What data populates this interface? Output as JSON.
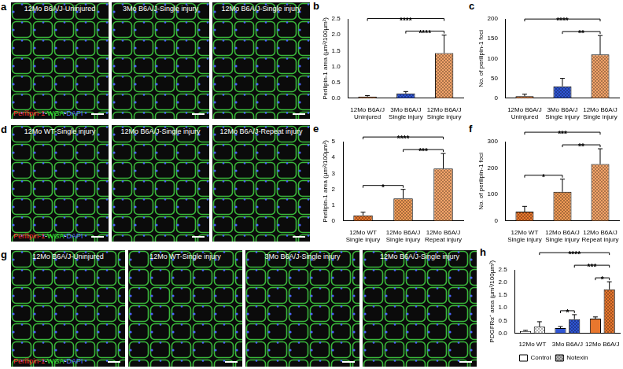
{
  "image_panels": [
    {
      "panel": "a",
      "images": [
        "12Mo B6A/J-Uninjured",
        "3Mo B6A/J-Single injury",
        "12Mo B6A/J-Single injury"
      ],
      "stain": [
        {
          "text": "Perilipin-1",
          "color": "#ff2b2b"
        },
        {
          "text": "-",
          "color": "#ffffff"
        },
        {
          "text": "WGA",
          "color": "#33ee33"
        },
        {
          "text": "-",
          "color": "#ffffff"
        },
        {
          "text": "DAPI",
          "color": "#5a74ff"
        }
      ]
    },
    {
      "panel": "d",
      "images": [
        "12Mo WT-Single injury",
        "12Mo B6A/J-Single injury",
        "12Mo B6A/J-Repeat injury"
      ],
      "stain": [
        {
          "text": "Perilipin-1",
          "color": "#ff2b2b"
        },
        {
          "text": "-",
          "color": "#ffffff"
        },
        {
          "text": "WGA",
          "color": "#33ee33"
        },
        {
          "text": "-",
          "color": "#ffffff"
        },
        {
          "text": "DAPI",
          "color": "#5a74ff"
        }
      ]
    },
    {
      "panel": "g",
      "images": [
        "12Mo B6A/J-Uninjured",
        "12Mo WT-Single injury",
        "3Mo B6A/J-Single injury",
        "12Mo B6A/J-Single injury"
      ],
      "stain": [
        {
          "text": "Perilipin-1",
          "color": "#ff2b2b"
        },
        {
          "text": "-",
          "color": "#ffffff"
        },
        {
          "text": "WGA",
          "color": "#33ee33"
        },
        {
          "text": "-",
          "color": "#ffffff"
        },
        {
          "text": "DAPI",
          "color": "#5a74ff"
        }
      ]
    }
  ],
  "chart_data": [
    {
      "panel": "b",
      "type": "bar",
      "grid": false,
      "ylabel": "Perilipin-1 area (µm²/100µm²)",
      "categories": [
        [
          "12Mo B6A/J",
          "Uninjured"
        ],
        [
          "3Mo B6A/J",
          "Single injury"
        ],
        [
          "12Mo B6A/J",
          "Single injury"
        ]
      ],
      "series": [
        {
          "colors": [
            "#e8772e",
            "#2f55d4",
            "#f3a46a"
          ],
          "values": [
            0.05,
            0.15,
            1.42
          ],
          "errors": [
            0.03,
            0.06,
            0.57
          ]
        }
      ],
      "ylim": [
        0,
        2.5
      ],
      "yticks": [
        {
          "value": 0,
          "label": "0.0"
        },
        0.5,
        {
          "value": 1,
          "label": "1.0"
        },
        1.5,
        {
          "value": 2,
          "label": "2.0"
        },
        2.5
      ],
      "annotations": [
        {
          "from": [
            0,
            1
          ],
          "to": [
            0,
            2
          ],
          "text": "****"
        },
        {
          "from": [
            0,
            0
          ],
          "to": [
            0,
            2
          ],
          "text": "****"
        }
      ]
    },
    {
      "panel": "c",
      "type": "bar",
      "grid": false,
      "ylabel": "No. of perilipin-1 foci",
      "categories": [
        [
          "12Mo B6A/J",
          "Uninjured"
        ],
        [
          "3Mo B6A/J",
          "Single injury"
        ],
        [
          "12Mo B6A/J",
          "Single injury"
        ]
      ],
      "series": [
        {
          "colors": [
            "#e8772e",
            "#2f55d4",
            "#f3a46a"
          ],
          "values": [
            5,
            30,
            110
          ],
          "errors": [
            5,
            20,
            48
          ]
        }
      ],
      "ylim": [
        0,
        200
      ],
      "yticks": [
        0,
        50,
        100,
        150,
        200
      ],
      "annotations": [
        {
          "from": [
            0,
            1
          ],
          "to": [
            0,
            2
          ],
          "text": "**"
        },
        {
          "from": [
            0,
            0
          ],
          "to": [
            0,
            2
          ],
          "text": "****"
        }
      ]
    },
    {
      "panel": "e",
      "type": "bar",
      "grid": false,
      "ylabel": "Perilipin-1 area (µm²/100µm²)",
      "categories": [
        [
          "12Mo WT",
          "Single injury"
        ],
        [
          "12Mo B6A/J",
          "Single injury"
        ],
        [
          "12Mo B6A/J",
          "Repeat injury"
        ]
      ],
      "series": [
        {
          "colors": [
            "#e8772e",
            "#f09a55",
            "#f5a56a"
          ],
          "values": [
            0.35,
            1.42,
            3.3
          ],
          "errors": [
            0.2,
            0.57,
            0.95
          ]
        }
      ],
      "ylim": [
        0,
        5
      ],
      "yticks": [
        0,
        1,
        2,
        3,
        4,
        5
      ],
      "annotations": [
        {
          "from": [
            0,
            0
          ],
          "to": [
            0,
            1
          ],
          "text": "*"
        },
        {
          "from": [
            0,
            1
          ],
          "to": [
            0,
            2
          ],
          "text": "***"
        },
        {
          "from": [
            0,
            0
          ],
          "to": [
            0,
            2
          ],
          "text": "****"
        }
      ]
    },
    {
      "panel": "f",
      "type": "bar",
      "grid": false,
      "ylabel": "No. of perilipin-1 foci",
      "categories": [
        [
          "12Mo WT",
          "Single injury"
        ],
        [
          "12Mo B6A/J",
          "Single injury"
        ],
        [
          "12Mo B6A/J",
          "Repeat injury"
        ]
      ],
      "series": [
        {
          "colors": [
            "#e8772e",
            "#f09a55",
            "#f5a56a"
          ],
          "values": [
            35,
            110,
            215
          ],
          "errors": [
            20,
            48,
            58
          ]
        }
      ],
      "ylim": [
        0,
        300
      ],
      "yticks": [
        0,
        100,
        200,
        300
      ],
      "annotations": [
        {
          "from": [
            0,
            0
          ],
          "to": [
            0,
            1
          ],
          "text": "*"
        },
        {
          "from": [
            0,
            1
          ],
          "to": [
            0,
            2
          ],
          "text": "**"
        },
        {
          "from": [
            0,
            0
          ],
          "to": [
            0,
            2
          ],
          "text": "***"
        }
      ]
    },
    {
      "panel": "h",
      "type": "bar",
      "grid": false,
      "legend": "bottom",
      "ylabel": "PDGFRα⁺ area (µm²/100µm²)",
      "categories": [
        "12Mo WT",
        "3Mo B6A/J",
        "12Mo B6A/J"
      ],
      "series": [
        {
          "name": "Control",
          "color": "#ffffff",
          "colors": [
            "#ffffff",
            "#2f55d4",
            "#e8772e"
          ],
          "values": [
            0.08,
            0.2,
            0.57
          ],
          "errors": [
            0.03,
            0.06,
            0.07
          ]
        },
        {
          "name": "Notexin",
          "color": "#bbbbbb",
          "colors": [
            "#ffffff",
            "#2f55d4",
            "#e8772e"
          ],
          "values": [
            0.25,
            0.55,
            1.73
          ],
          "errors": [
            0.2,
            0.18,
            0.3
          ]
        }
      ],
      "ylim": [
        0,
        2.5
      ],
      "yticks": [
        {
          "value": 0,
          "label": "0.0"
        },
        0.5,
        {
          "value": 1,
          "label": "1.0"
        },
        1.5,
        {
          "value": 2,
          "label": "2.0"
        },
        2.5
      ],
      "annotations": [
        {
          "from": [
            0,
            1
          ],
          "to": [
            1,
            1
          ],
          "text": "*"
        },
        {
          "from": [
            0,
            2
          ],
          "to": [
            1,
            2
          ],
          "text": "*"
        },
        {
          "from": [
            1,
            1
          ],
          "to": [
            1,
            2
          ],
          "text": "***"
        },
        {
          "from": [
            1,
            0
          ],
          "to": [
            1,
            2
          ],
          "text": "****"
        }
      ]
    }
  ]
}
